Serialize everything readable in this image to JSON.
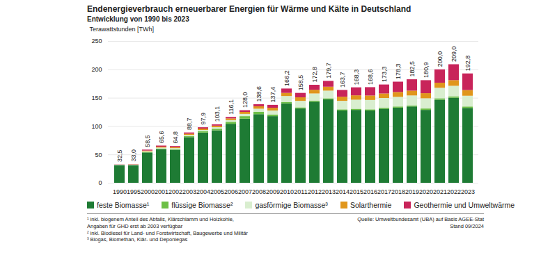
{
  "chart_data": {
    "type": "bar",
    "title": "Endenergieverbrauch erneuerbarer Energien für Wärme und Kälte in Deutschland",
    "subtitle": "Entwicklung von 1990 bis 2023",
    "y_label": "Terawattstunden [TWh]",
    "stacked": true,
    "grid": true,
    "legend": "bottom",
    "ylim": [
      0,
      250
    ],
    "yticks": [
      0,
      50,
      100,
      150,
      200,
      250
    ],
    "categories": [
      "1990",
      "1995",
      "2000",
      "2001",
      "2002",
      "2003",
      "2004",
      "2005",
      "2006",
      "2007",
      "2008",
      "2009",
      "2010",
      "2011",
      "2012",
      "2013",
      "2014",
      "2015",
      "2016",
      "2017",
      "2018",
      "2019",
      "2020",
      "2021",
      "2022",
      "2023"
    ],
    "series": [
      {
        "name": "feste Biomasse¹",
        "color": "#1e7b34",
        "values": [
          31.3,
          31.2,
          53.5,
          59.5,
          58.2,
          80.5,
          88.5,
          92.5,
          104.0,
          113.0,
          121.0,
          117.5,
          140.0,
          131.0,
          143.0,
          147.0,
          127.5,
          128.5,
          127.5,
          130.5,
          132.5,
          134.5,
          128.5,
          146.5,
          150.0,
          132.0
        ]
      },
      {
        "name": "flüssige Biomasse²",
        "color": "#6cbf46",
        "values": [
          0,
          0,
          0.5,
          1.0,
          1.3,
          1.8,
          2.2,
          2.8,
          3.5,
          4.5,
          4.0,
          3.0,
          2.5,
          2.0,
          2.0,
          2.0,
          2.0,
          2.0,
          2.0,
          2.0,
          2.0,
          2.0,
          2.5,
          2.5,
          2.5,
          2.5
        ]
      },
      {
        "name": "gasförmige Biomasse³",
        "color": "#d9eecf",
        "values": [
          0.8,
          1.0,
          1.5,
          1.6,
          1.6,
          2.0,
          2.4,
          2.7,
          3.0,
          4.0,
          5.6,
          7.0,
          10.5,
          11.5,
          12.5,
          13.5,
          15.0,
          16.0,
          16.5,
          17.0,
          17.0,
          17.5,
          18.0,
          18.5,
          18.5,
          19.0
        ]
      },
      {
        "name": "Solarthermie",
        "color": "#e0961c",
        "values": [
          0.1,
          0.4,
          1.3,
          1.6,
          1.8,
          2.2,
          2.5,
          2.7,
          3.0,
          3.5,
          4.3,
          4.8,
          5.5,
          6.2,
          6.5,
          6.9,
          7.3,
          7.7,
          7.9,
          8.0,
          8.5,
          8.5,
          9.0,
          9.0,
          10.0,
          10.0
        ]
      },
      {
        "name": "Geothermie und Umweltwärme",
        "color": "#c8245a",
        "values": [
          0.3,
          0.4,
          1.7,
          1.9,
          1.9,
          2.2,
          2.3,
          2.4,
          2.6,
          3.0,
          3.7,
          5.1,
          7.7,
          7.8,
          8.8,
          10.3,
          11.9,
          14.1,
          14.7,
          15.8,
          18.3,
          20.0,
          22.9,
          23.5,
          28.0,
          29.3
        ]
      }
    ],
    "totals": [
      32.5,
      33.0,
      58.5,
      65.6,
      64.8,
      88.7,
      97.9,
      103.1,
      116.1,
      128.0,
      138.6,
      137.4,
      166.2,
      158.5,
      172.8,
      179.7,
      163.7,
      168.3,
      168.6,
      173.3,
      178.3,
      182.5,
      180.9,
      200.0,
      209.0,
      192.8
    ],
    "total_labels": [
      "32,5",
      "33,0",
      "58,5",
      "65,6",
      "64,8",
      "88,7",
      "97,9",
      "103,1",
      "116,1",
      "128,0",
      "138,6",
      "137,4",
      "166,2",
      "158,5",
      "172,8",
      "179,7",
      "163,7",
      "168,3",
      "168,6",
      "173,3",
      "178,3",
      "182,5",
      "180,9",
      "200,0",
      "209,0",
      "192,8"
    ],
    "footnotes": [
      "¹ inkl. biogenem Anteil des Abfalls, Klärschlamm und Holzkohle,",
      "Angaben für GHD erst ab 2003 verfügbar",
      "² inkl. Biodiesel für Land- und Forstwirtschaft, Baugewerbe und Militär",
      "³ Biogas, Biomethan, Klär- und Deponiegas"
    ],
    "source": [
      "Quelle: Umweltbundesamt (UBA) auf Basis AGEE-Stat",
      "Stand 09/2024"
    ]
  }
}
